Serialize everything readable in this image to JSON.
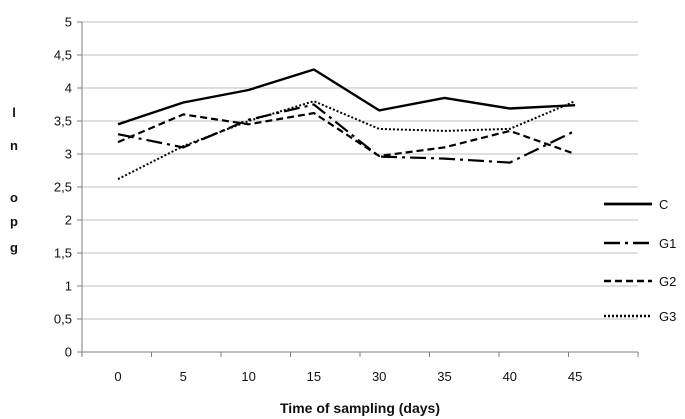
{
  "chart_data": {
    "type": "line",
    "title": "",
    "xlabel": "Time of sampling (days)",
    "ylabel": "ln opg",
    "ylabel_chars": [
      "l",
      "n",
      "",
      "o",
      "p",
      "g"
    ],
    "categories": [
      "0",
      "5",
      "10",
      "15",
      "30",
      "35",
      "40",
      "45"
    ],
    "ylim": [
      0,
      5
    ],
    "yticks": [
      "0",
      "0,5",
      "1",
      "1,5",
      "2",
      "2,5",
      "3",
      "3,5",
      "4",
      "4,5",
      "5"
    ],
    "grid": true,
    "legend_position": "right",
    "series": [
      {
        "name": "C",
        "values": [
          3.45,
          3.78,
          3.97,
          4.28,
          3.66,
          3.85,
          3.69,
          3.74
        ],
        "dash": "none",
        "width": 2.4
      },
      {
        "name": "G1",
        "values": [
          3.3,
          3.1,
          3.52,
          3.75,
          2.96,
          2.93,
          2.87,
          3.35
        ],
        "dash": "16,5,3,5",
        "width": 2.2
      },
      {
        "name": "G2",
        "values": [
          3.18,
          3.6,
          3.45,
          3.62,
          2.97,
          3.1,
          3.35,
          3.0
        ],
        "dash": "7,4",
        "width": 2.2
      },
      {
        "name": "G3",
        "values": [
          2.62,
          3.12,
          3.5,
          3.8,
          3.38,
          3.35,
          3.38,
          3.8
        ],
        "dash": "2,2",
        "width": 2.0
      }
    ]
  }
}
